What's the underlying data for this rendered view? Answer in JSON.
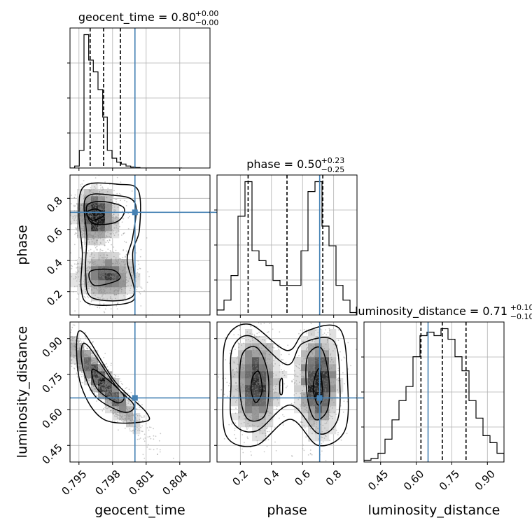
{
  "chart_data": {
    "type": "corner",
    "parameters": [
      {
        "name": "geocent_time",
        "label": "geocent_time",
        "range": [
          0.7942,
          0.8067
        ],
        "truth": 0.8,
        "ticks": [
          0.795,
          0.798,
          0.801,
          0.804
        ],
        "tick_labels": [
          "0.795",
          "0.798",
          "0.801",
          "0.804"
        ],
        "title": {
          "prefix": "geocent_time = 0.80",
          "plus": "+0.00",
          "minus": "−0.00"
        },
        "quantiles": [
          0.796,
          0.7972,
          0.7987
        ],
        "histogram": {
          "edges": [
            0.7942,
            0.79462,
            0.79503,
            0.79545,
            0.79587,
            0.79628,
            0.7967,
            0.79712,
            0.79753,
            0.79795,
            0.79837,
            0.79878,
            0.7992,
            0.79962,
            0.80003,
            0.80045,
            0.80087,
            0.80128,
            0.8017,
            0.80212,
            0.80253,
            0.80295,
            0.80337,
            0.80378,
            0.8042
          ],
          "counts": [
            0,
            1,
            9,
            68,
            55,
            49,
            40,
            26,
            9,
            5,
            3,
            2,
            1,
            0.5,
            0.2,
            0,
            0,
            0,
            0,
            0,
            0,
            0,
            0,
            0
          ]
        }
      },
      {
        "name": "phase",
        "label": "phase",
        "range": [
          0.05,
          0.95
        ],
        "truth": 0.71,
        "ticks": [
          0.2,
          0.4,
          0.6,
          0.8
        ],
        "tick_labels": [
          "0.2",
          "0.4",
          "0.6",
          "0.8"
        ],
        "title": {
          "prefix": "phase = 0.50",
          "plus": "+0.23",
          "minus": "−0.25"
        },
        "quantiles": [
          0.25,
          0.5,
          0.73
        ],
        "histogram": {
          "edges": [
            0.05,
            0.095,
            0.14,
            0.185,
            0.23,
            0.275,
            0.32,
            0.365,
            0.41,
            0.455,
            0.5,
            0.545,
            0.59,
            0.635,
            0.68,
            0.725,
            0.77,
            0.815,
            0.86,
            0.905,
            0.95
          ],
          "counts": [
            1,
            3,
            8,
            20,
            27,
            13,
            11,
            10,
            7,
            6,
            6,
            6,
            13,
            25,
            27,
            18,
            14,
            6,
            3,
            0.5
          ]
        }
      },
      {
        "name": "luminosity_distance",
        "label": "luminosity_distance",
        "range": [
          0.38,
          0.97
        ],
        "truth": 0.65,
        "ticks": [
          0.45,
          0.6,
          0.75,
          0.9
        ],
        "tick_labels": [
          "0.45",
          "0.60",
          "0.75",
          "0.90"
        ],
        "title": {
          "prefix": "luminosity_distance = 0.71",
          "plus": "+0.10",
          "minus": "−0.10"
        },
        "quantiles": [
          0.62,
          0.71,
          0.81
        ],
        "histogram": {
          "edges": [
            0.38,
            0.4095,
            0.439,
            0.4685,
            0.498,
            0.5275,
            0.557,
            0.5865,
            0.616,
            0.6455,
            0.675,
            0.7045,
            0.734,
            0.7635,
            0.793,
            0.8225,
            0.852,
            0.8815,
            0.911,
            0.9405,
            0.97
          ],
          "counts": [
            1,
            2,
            5,
            13,
            24,
            35,
            43,
            60,
            72,
            74,
            72,
            76,
            70,
            60,
            52,
            35,
            25,
            15,
            11,
            5
          ]
        }
      }
    ],
    "pairs": [
      {
        "x": "geocent_time",
        "y": "phase",
        "modes": [
          {
            "x": 0.7965,
            "y": 0.69,
            "sx": 0.0009,
            "sy": 0.08,
            "rho": 0.0,
            "w": 1.0
          },
          {
            "x": 0.7975,
            "y": 0.3,
            "sx": 0.0012,
            "sy": 0.07,
            "rho": 0.0,
            "w": 0.8
          }
        ],
        "contours": [
          [
            [
              0.7955,
              0.88
            ],
            [
              0.7985,
              0.89
            ],
            [
              0.8003,
              0.85
            ],
            [
              0.8004,
              0.6
            ],
            [
              0.7998,
              0.45
            ],
            [
              0.8,
              0.22
            ],
            [
              0.7995,
              0.13
            ],
            [
              0.796,
              0.12
            ],
            [
              0.7952,
              0.22
            ],
            [
              0.7953,
              0.45
            ],
            [
              0.795,
              0.7
            ]
          ],
          [
            [
              0.7956,
              0.8
            ],
            [
              0.798,
              0.82
            ],
            [
              0.8,
              0.77
            ],
            [
              0.7998,
              0.55
            ],
            [
              0.7993,
              0.4
            ],
            [
              0.7998,
              0.17
            ],
            [
              0.7962,
              0.16
            ],
            [
              0.7956,
              0.32
            ],
            [
              0.7957,
              0.55
            ]
          ],
          [
            [
              0.7957,
              0.75
            ],
            [
              0.797,
              0.78
            ],
            [
              0.799,
              0.74
            ],
            [
              0.7984,
              0.65
            ],
            [
              0.7962,
              0.64
            ]
          ],
          [
            [
              0.7957,
              0.71
            ],
            [
              0.7966,
              0.73
            ],
            [
              0.7972,
              0.69
            ],
            [
              0.7962,
              0.66
            ]
          ],
          [
            [
              0.796,
              0.33
            ],
            [
              0.798,
              0.34
            ],
            [
              0.7986,
              0.28
            ],
            [
              0.7964,
              0.24
            ]
          ]
        ]
      },
      {
        "x": "geocent_time",
        "y": "luminosity_distance",
        "modes": [
          {
            "x": 0.797,
            "y": 0.72,
            "sx": 0.0015,
            "sy": 0.09,
            "rho": -0.93,
            "w": 1.0
          }
        ],
        "contours": [
          [
            [
              0.7948,
              0.89
            ],
            [
              0.7955,
              0.92
            ],
            [
              0.7982,
              0.72
            ],
            [
              0.801,
              0.59
            ],
            [
              0.8008,
              0.55
            ],
            [
              0.7972,
              0.56
            ],
            [
              0.7952,
              0.7
            ]
          ],
          [
            [
              0.7952,
              0.85
            ],
            [
              0.7958,
              0.87
            ],
            [
              0.7983,
              0.7
            ],
            [
              0.7999,
              0.62
            ],
            [
              0.799,
              0.59
            ],
            [
              0.7966,
              0.65
            ],
            [
              0.7955,
              0.75
            ]
          ],
          [
            [
              0.7962,
              0.77
            ],
            [
              0.7975,
              0.73
            ],
            [
              0.799,
              0.66
            ],
            [
              0.7984,
              0.63
            ],
            [
              0.7966,
              0.69
            ]
          ]
        ]
      },
      {
        "x": "phase",
        "y": "luminosity_distance",
        "modes": [
          {
            "x": 0.3,
            "y": 0.71,
            "sx": 0.07,
            "sy": 0.1,
            "rho": 0.0,
            "w": 1.0
          },
          {
            "x": 0.7,
            "y": 0.71,
            "sx": 0.06,
            "sy": 0.1,
            "rho": 0.0,
            "w": 1.0
          }
        ],
        "contours": [
          [
            [
              0.11,
              0.9
            ],
            [
              0.26,
              0.96
            ],
            [
              0.5,
              0.85
            ],
            [
              0.62,
              0.93
            ],
            [
              0.84,
              0.94
            ],
            [
              0.89,
              0.71
            ],
            [
              0.87,
              0.51
            ],
            [
              0.7,
              0.45
            ],
            [
              0.52,
              0.56
            ],
            [
              0.3,
              0.45
            ],
            [
              0.11,
              0.49
            ],
            [
              0.09,
              0.71
            ]
          ],
          [
            [
              0.15,
              0.86
            ],
            [
              0.27,
              0.91
            ],
            [
              0.5,
              0.79
            ],
            [
              0.6,
              0.88
            ],
            [
              0.8,
              0.89
            ],
            [
              0.84,
              0.7
            ],
            [
              0.82,
              0.55
            ],
            [
              0.7,
              0.5
            ],
            [
              0.52,
              0.62
            ],
            [
              0.3,
              0.51
            ],
            [
              0.15,
              0.55
            ],
            [
              0.14,
              0.71
            ]
          ],
          [
            [
              0.21,
              0.83
            ],
            [
              0.31,
              0.86
            ],
            [
              0.38,
              0.74
            ],
            [
              0.36,
              0.58
            ],
            [
              0.25,
              0.56
            ],
            [
              0.2,
              0.66
            ]
          ],
          [
            [
              0.63,
              0.82
            ],
            [
              0.72,
              0.86
            ],
            [
              0.77,
              0.73
            ],
            [
              0.76,
              0.6
            ],
            [
              0.68,
              0.56
            ],
            [
              0.63,
              0.66
            ]
          ],
          [
            [
              0.28,
              0.74
            ],
            [
              0.32,
              0.76
            ],
            [
              0.34,
              0.68
            ],
            [
              0.3,
              0.63
            ],
            [
              0.27,
              0.68
            ]
          ],
          [
            [
              0.68,
              0.74
            ],
            [
              0.71,
              0.77
            ],
            [
              0.73,
              0.66
            ],
            [
              0.7,
              0.62
            ],
            [
              0.67,
              0.68
            ]
          ],
          [
            [
              0.455,
              0.72
            ],
            [
              0.47,
              0.73
            ],
            [
              0.47,
              0.67
            ],
            [
              0.455,
              0.67
            ]
          ]
        ]
      }
    ],
    "truth_color": "#4682b4",
    "quantile_style": "dashed",
    "grid": true
  }
}
